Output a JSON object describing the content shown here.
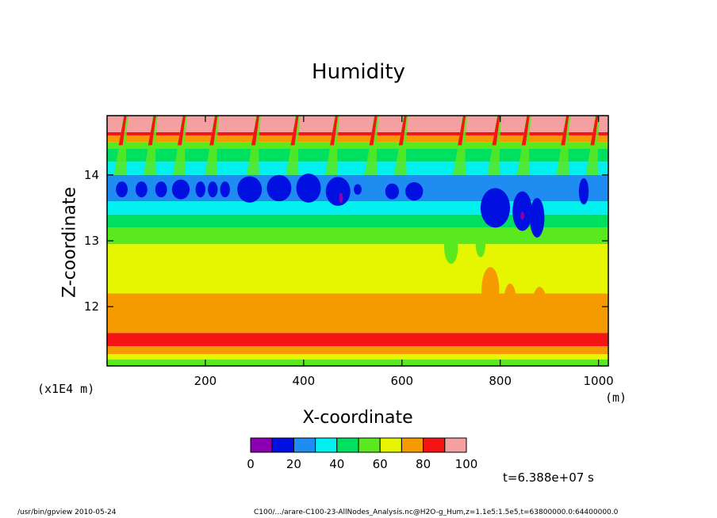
{
  "chart_data": {
    "type": "heatmap",
    "title": "Humidity",
    "xlabel": "X-coordinate",
    "ylabel": "Z-coordinate",
    "x_unit": "(m)",
    "y_unit": "(x1E4 m)",
    "xlim": [
      0,
      1020
    ],
    "ylim": [
      11.1,
      14.9
    ],
    "x_ticks": [
      200,
      400,
      600,
      800,
      1000
    ],
    "y_ticks": [
      12,
      13,
      14
    ],
    "levels": [
      0,
      10,
      20,
      30,
      40,
      50,
      60,
      70,
      80,
      90,
      100
    ],
    "level_labels": [
      "0",
      "20",
      "40",
      "60",
      "80",
      "100"
    ],
    "colors": [
      "#8b00b0",
      "#0010e0",
      "#1e8cf0",
      "#00f0f0",
      "#00e060",
      "#5ae81e",
      "#e6f500",
      "#f59a00",
      "#f51414",
      "#f5a0a0"
    ],
    "bands": [
      {
        "z_min": 11.1,
        "z_max": 11.2,
        "value": 55
      },
      {
        "z_min": 11.2,
        "z_max": 11.28,
        "value": 65
      },
      {
        "z_min": 11.28,
        "z_max": 11.4,
        "value": 75
      },
      {
        "z_min": 11.4,
        "z_max": 11.6,
        "value": 85
      },
      {
        "z_min": 11.6,
        "z_max": 12.2,
        "value": 75
      },
      {
        "z_min": 12.2,
        "z_max": 12.95,
        "value": 65
      },
      {
        "z_min": 12.95,
        "z_max": 13.2,
        "value": 55
      },
      {
        "z_min": 13.2,
        "z_max": 13.4,
        "value": 45
      },
      {
        "z_min": 13.4,
        "z_max": 13.6,
        "value": 35
      },
      {
        "z_min": 13.6,
        "z_max": 14.0,
        "value": 25
      },
      {
        "z_min": 14.0,
        "z_max": 14.2,
        "value": 35
      },
      {
        "z_min": 14.2,
        "z_max": 14.4,
        "value": 45
      },
      {
        "z_min": 14.4,
        "z_max": 14.5,
        "value": 55
      },
      {
        "z_min": 14.5,
        "z_max": 14.6,
        "value": 75
      },
      {
        "z_min": 14.6,
        "z_max": 14.65,
        "value": 85
      },
      {
        "z_min": 14.65,
        "z_max": 14.9,
        "value": 95
      }
    ],
    "dry_cells": [
      {
        "x": 30,
        "z": 13.78,
        "dx": 12,
        "dz": 0.12,
        "value": 15
      },
      {
        "x": 70,
        "z": 13.78,
        "dx": 12,
        "dz": 0.12,
        "value": 15
      },
      {
        "x": 110,
        "z": 13.78,
        "dx": 12,
        "dz": 0.12,
        "value": 15
      },
      {
        "x": 150,
        "z": 13.78,
        "dx": 18,
        "dz": 0.15,
        "value": 15
      },
      {
        "x": 190,
        "z": 13.78,
        "dx": 10,
        "dz": 0.12,
        "value": 15
      },
      {
        "x": 215,
        "z": 13.78,
        "dx": 10,
        "dz": 0.12,
        "value": 15
      },
      {
        "x": 240,
        "z": 13.78,
        "dx": 10,
        "dz": 0.12,
        "value": 15
      },
      {
        "x": 290,
        "z": 13.78,
        "dx": 25,
        "dz": 0.2,
        "value": 15
      },
      {
        "x": 350,
        "z": 13.8,
        "dx": 25,
        "dz": 0.2,
        "value": 15
      },
      {
        "x": 410,
        "z": 13.8,
        "dx": 25,
        "dz": 0.22,
        "value": 15
      },
      {
        "x": 470,
        "z": 13.75,
        "dx": 25,
        "dz": 0.22,
        "value": 15
      },
      {
        "x": 476,
        "z": 13.65,
        "dx": 4,
        "dz": 0.08,
        "value": 5
      },
      {
        "x": 510,
        "z": 13.78,
        "dx": 8,
        "dz": 0.08,
        "value": 15
      },
      {
        "x": 580,
        "z": 13.75,
        "dx": 14,
        "dz": 0.12,
        "value": 15
      },
      {
        "x": 625,
        "z": 13.75,
        "dx": 18,
        "dz": 0.14,
        "value": 15
      },
      {
        "x": 790,
        "z": 13.5,
        "dx": 30,
        "dz": 0.3,
        "value": 15
      },
      {
        "x": 845,
        "z": 13.45,
        "dx": 20,
        "dz": 0.3,
        "value": 15
      },
      {
        "x": 845,
        "z": 13.38,
        "dx": 4,
        "dz": 0.06,
        "value": 5
      },
      {
        "x": 875,
        "z": 13.35,
        "dx": 15,
        "dz": 0.3,
        "value": 15
      },
      {
        "x": 970,
        "z": 13.75,
        "dx": 10,
        "dz": 0.2,
        "value": 15
      }
    ],
    "moist_intrusions": [
      {
        "x": 780,
        "z": 12.25,
        "dx": 18,
        "dz": 0.35,
        "value": 75
      },
      {
        "x": 820,
        "z": 12.0,
        "dx": 14,
        "dz": 0.35,
        "value": 75
      },
      {
        "x": 880,
        "z": 11.95,
        "dx": 16,
        "dz": 0.35,
        "value": 75
      },
      {
        "x": 940,
        "z": 11.9,
        "dx": 20,
        "dz": 0.3,
        "value": 75
      },
      {
        "x": 700,
        "z": 12.9,
        "dx": 14,
        "dz": 0.25,
        "value": 55
      },
      {
        "x": 760,
        "z": 12.95,
        "dx": 10,
        "dz": 0.2,
        "value": 55
      }
    ],
    "plumes": [
      30,
      90,
      150,
      215,
      300,
      380,
      460,
      540,
      600,
      720,
      790,
      850,
      930,
      990
    ]
  },
  "timestamp": "t=6.388e+07 s",
  "footer_left": "/usr/bin/gpview   2010-05-24",
  "footer_right": "C100/.../arare-C100-23-AllNodes_Analysis.nc@H2O-g_Hum,z=1.1e5:1.5e5,t=63800000.0:64400000.0"
}
